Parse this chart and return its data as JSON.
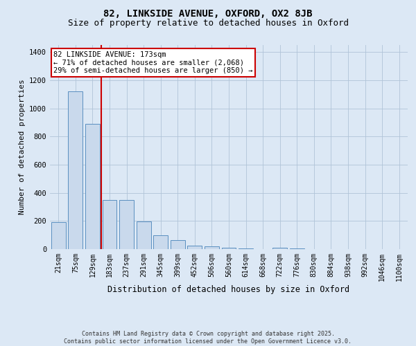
{
  "title": "82, LINKSIDE AVENUE, OXFORD, OX2 8JB",
  "subtitle": "Size of property relative to detached houses in Oxford",
  "xlabel": "Distribution of detached houses by size in Oxford",
  "ylabel": "Number of detached properties",
  "categories": [
    "21sqm",
    "75sqm",
    "129sqm",
    "183sqm",
    "237sqm",
    "291sqm",
    "345sqm",
    "399sqm",
    "452sqm",
    "506sqm",
    "560sqm",
    "614sqm",
    "668sqm",
    "722sqm",
    "776sqm",
    "830sqm",
    "884sqm",
    "938sqm",
    "992sqm",
    "1046sqm",
    "1100sqm"
  ],
  "values": [
    190,
    1120,
    890,
    350,
    350,
    195,
    100,
    62,
    25,
    22,
    12,
    5,
    0,
    10,
    5,
    0,
    0,
    0,
    0,
    0,
    0
  ],
  "bar_color": "#c9d9ec",
  "bar_edge_color": "#5a8fc0",
  "vline_color": "#cc0000",
  "ylim": [
    0,
    1450
  ],
  "yticks": [
    0,
    200,
    400,
    600,
    800,
    1000,
    1200,
    1400
  ],
  "annotation_text": "82 LINKSIDE AVENUE: 173sqm\n← 71% of detached houses are smaller (2,068)\n29% of semi-detached houses are larger (850) →",
  "annotation_box_color": "#cc0000",
  "background_color": "#dce8f5",
  "footer_line1": "Contains HM Land Registry data © Crown copyright and database right 2025.",
  "footer_line2": "Contains public sector information licensed under the Open Government Licence v3.0.",
  "title_fontsize": 10,
  "subtitle_fontsize": 9,
  "tick_fontsize": 7,
  "ylabel_fontsize": 8,
  "xlabel_fontsize": 8.5,
  "annot_fontsize": 7.5
}
